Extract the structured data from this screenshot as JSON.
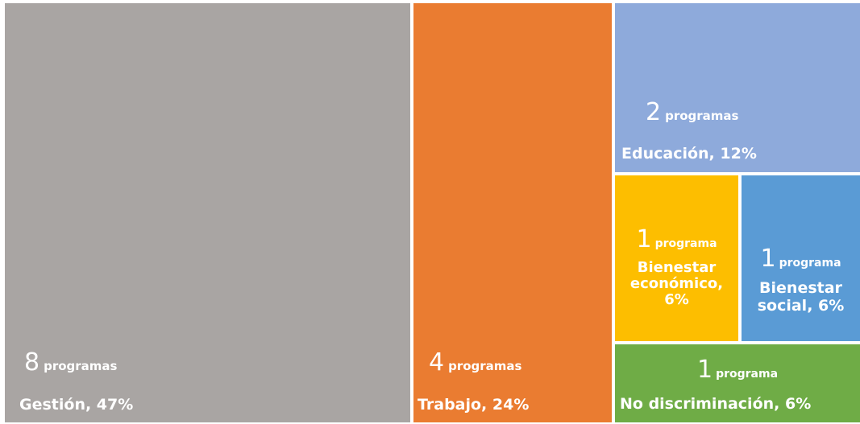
{
  "chart_data": {
    "type": "treemap",
    "items": [
      {
        "name": "Gestión",
        "percent": 47,
        "count": 8,
        "unit": "programas",
        "label": "Gestión, 47%",
        "color": "#a9a5a3"
      },
      {
        "name": "Trabajo",
        "percent": 24,
        "count": 4,
        "unit": "programas",
        "label": "Trabajo, 24%",
        "color": "#ea7c31"
      },
      {
        "name": "Educación",
        "percent": 12,
        "count": 2,
        "unit": "programas",
        "label": "Educación, 12%",
        "color": "#8eaadb"
      },
      {
        "name": "Bienestar económico",
        "percent": 6,
        "count": 1,
        "unit": "programa",
        "label": "Bienestar económico, 6%",
        "color": "#fdbe00"
      },
      {
        "name": "Bienestar social",
        "percent": 6,
        "count": 1,
        "unit": "programa",
        "label": "Bienestar social, 6%",
        "color": "#5a9bd5"
      },
      {
        "name": "No discriminación",
        "percent": 6,
        "count": 1,
        "unit": "programa",
        "label": "No discriminación, 6%",
        "color": "#6fac46"
      }
    ]
  }
}
